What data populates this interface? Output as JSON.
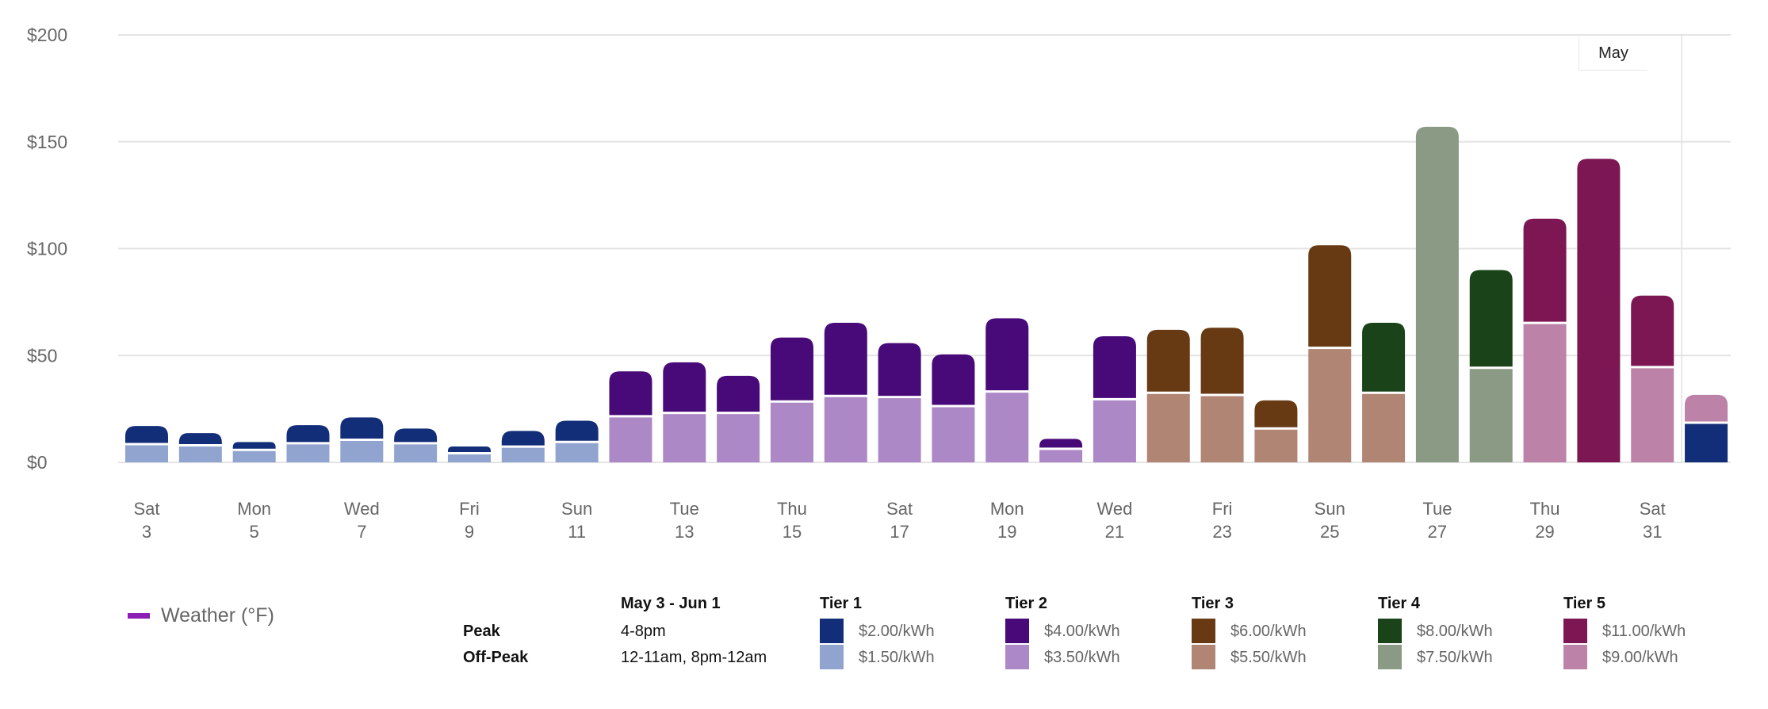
{
  "chart_data": {
    "type": "bar",
    "stacked": true,
    "ylim": [
      0,
      200
    ],
    "yticks": [
      "$0",
      "$50",
      "$100",
      "$150",
      "$200"
    ],
    "ytick_values": [
      0,
      50,
      100,
      150,
      200
    ],
    "grid": true,
    "month_marker": "May",
    "xtick_labels": [
      {
        "weekday": "Sat",
        "day": "3"
      },
      {
        "weekday": "Mon",
        "day": "5"
      },
      {
        "weekday": "Wed",
        "day": "7"
      },
      {
        "weekday": "Fri",
        "day": "9"
      },
      {
        "weekday": "Sun",
        "day": "11"
      },
      {
        "weekday": "Tue",
        "day": "13"
      },
      {
        "weekday": "Thu",
        "day": "15"
      },
      {
        "weekday": "Sat",
        "day": "17"
      },
      {
        "weekday": "Mon",
        "day": "19"
      },
      {
        "weekday": "Wed",
        "day": "21"
      },
      {
        "weekday": "Fri",
        "day": "23"
      },
      {
        "weekday": "Sun",
        "day": "25"
      },
      {
        "weekday": "Tue",
        "day": "27"
      },
      {
        "weekday": "Thu",
        "day": "29"
      },
      {
        "weekday": "Sat",
        "day": "31"
      }
    ],
    "bars": [
      {
        "date": "May 3",
        "segments": [
          {
            "color": "t1_off",
            "value": 8
          },
          {
            "color": "t1_peak",
            "value": 9
          }
        ]
      },
      {
        "date": "May 4",
        "segments": [
          {
            "color": "t1_off",
            "value": 7.4
          },
          {
            "color": "t1_peak",
            "value": 6.3
          }
        ]
      },
      {
        "date": "May 5",
        "segments": [
          {
            "color": "t1_off",
            "value": 5.3
          },
          {
            "color": "t1_peak",
            "value": 4.2
          }
        ]
      },
      {
        "date": "May 6",
        "segments": [
          {
            "color": "t1_off",
            "value": 8.4
          },
          {
            "color": "t1_peak",
            "value": 9
          }
        ]
      },
      {
        "date": "May 7",
        "segments": [
          {
            "color": "t1_off",
            "value": 10
          },
          {
            "color": "t1_peak",
            "value": 11
          }
        ]
      },
      {
        "date": "May 8",
        "segments": [
          {
            "color": "t1_off",
            "value": 8.4
          },
          {
            "color": "t1_peak",
            "value": 7.4
          }
        ]
      },
      {
        "date": "May 9",
        "segments": [
          {
            "color": "t1_off",
            "value": 3.7
          },
          {
            "color": "t1_peak",
            "value": 3.7
          }
        ]
      },
      {
        "date": "May 10",
        "segments": [
          {
            "color": "t1_off",
            "value": 6.8
          },
          {
            "color": "t1_peak",
            "value": 7.9
          }
        ]
      },
      {
        "date": "May 11",
        "segments": [
          {
            "color": "t1_off",
            "value": 9
          },
          {
            "color": "t1_peak",
            "value": 10.5
          }
        ]
      },
      {
        "date": "May 12",
        "segments": [
          {
            "color": "t2_off",
            "value": 21
          },
          {
            "color": "t2_peak",
            "value": 21.6
          }
        ]
      },
      {
        "date": "May 13",
        "segments": [
          {
            "color": "t2_off",
            "value": 22.6
          },
          {
            "color": "t2_peak",
            "value": 24.2
          }
        ]
      },
      {
        "date": "May 14",
        "segments": [
          {
            "color": "t2_off",
            "value": 22.6
          },
          {
            "color": "t2_peak",
            "value": 17.9
          }
        ]
      },
      {
        "date": "May 15",
        "segments": [
          {
            "color": "t2_off",
            "value": 27.9
          },
          {
            "color": "t2_peak",
            "value": 30.5
          }
        ]
      },
      {
        "date": "May 16",
        "segments": [
          {
            "color": "t2_off",
            "value": 30.5
          },
          {
            "color": "t2_peak",
            "value": 34.8
          }
        ]
      },
      {
        "date": "May 17",
        "segments": [
          {
            "color": "t2_off",
            "value": 30
          },
          {
            "color": "t2_peak",
            "value": 25.8
          }
        ]
      },
      {
        "date": "May 18",
        "segments": [
          {
            "color": "t2_off",
            "value": 25.8
          },
          {
            "color": "t2_peak",
            "value": 24.7
          }
        ]
      },
      {
        "date": "May 19",
        "segments": [
          {
            "color": "t2_off",
            "value": 32.6
          },
          {
            "color": "t2_peak",
            "value": 34.8
          }
        ]
      },
      {
        "date": "May 20",
        "segments": [
          {
            "color": "t2_off",
            "value": 5.8
          },
          {
            "color": "t2_peak",
            "value": 5.2
          }
        ]
      },
      {
        "date": "May 21",
        "segments": [
          {
            "color": "t2_off",
            "value": 29
          },
          {
            "color": "t2_peak",
            "value": 30
          }
        ]
      },
      {
        "date": "May 22",
        "segments": [
          {
            "color": "t3_off",
            "value": 32
          },
          {
            "color": "t3_peak",
            "value": 30
          }
        ]
      },
      {
        "date": "May 23",
        "segments": [
          {
            "color": "t3_off",
            "value": 31
          },
          {
            "color": "t3_peak",
            "value": 32
          }
        ]
      },
      {
        "date": "May 24",
        "segments": [
          {
            "color": "t3_off",
            "value": 15.3
          },
          {
            "color": "t3_peak",
            "value": 13.7
          }
        ]
      },
      {
        "date": "May 25",
        "segments": [
          {
            "color": "t3_off",
            "value": 53
          },
          {
            "color": "t3_peak",
            "value": 48.6
          }
        ]
      },
      {
        "date": "May 26",
        "segments": [
          {
            "color": "t3_off",
            "value": 32
          },
          {
            "color": "t4_peak",
            "value": 33.3
          }
        ]
      },
      {
        "date": "May 27",
        "segments": [
          {
            "color": "t4_off",
            "value": 157
          }
        ]
      },
      {
        "date": "May 28",
        "segments": [
          {
            "color": "t4_off",
            "value": 43.7
          },
          {
            "color": "t4_peak",
            "value": 46.3
          }
        ]
      },
      {
        "date": "May 29",
        "segments": [
          {
            "color": "t5_off",
            "value": 64.7
          },
          {
            "color": "t5_peak",
            "value": 49.3
          }
        ]
      },
      {
        "date": "May 30",
        "segments": [
          {
            "color": "t5_peak",
            "value": 142
          }
        ]
      },
      {
        "date": "May 31",
        "segments": [
          {
            "color": "t5_off",
            "value": 44
          },
          {
            "color": "t5_peak",
            "value": 34
          }
        ]
      },
      {
        "date": "Jun 1",
        "segments": [
          {
            "color": "t1_peak",
            "value": 18
          },
          {
            "color": "t5_off",
            "value": 13.6
          }
        ]
      }
    ]
  },
  "colors": {
    "t1_peak": "#132e78",
    "t1_off": "#91a4cf",
    "t2_peak": "#470a78",
    "t2_off": "#ad88c6",
    "t3_peak": "#673a14",
    "t3_off": "#b08574",
    "t4_peak": "#1b431a",
    "t4_off": "#8a9a85",
    "t5_peak": "#7c1753",
    "t5_off": "#bc82a8",
    "weather": "#8b1fb3"
  },
  "legend": {
    "weather_label": "Weather (°F)",
    "period": "May 3 - Jun 1",
    "peak_label": "Peak",
    "peak_hours": "4-8pm",
    "offpeak_label": "Off-Peak",
    "offpeak_hours": "12-11am, 8pm-12am",
    "tiers": [
      {
        "name": "Tier 1",
        "peak": "$2.00/kWh",
        "offpeak": "$1.50/kWh"
      },
      {
        "name": "Tier 2",
        "peak": "$4.00/kWh",
        "offpeak": "$3.50/kWh"
      },
      {
        "name": "Tier 3",
        "peak": "$6.00/kWh",
        "offpeak": "$5.50/kWh"
      },
      {
        "name": "Tier 4",
        "peak": "$8.00/kWh",
        "offpeak": "$7.50/kWh"
      },
      {
        "name": "Tier 5",
        "peak": "$11.00/kWh",
        "offpeak": "$9.00/kWh"
      }
    ]
  }
}
